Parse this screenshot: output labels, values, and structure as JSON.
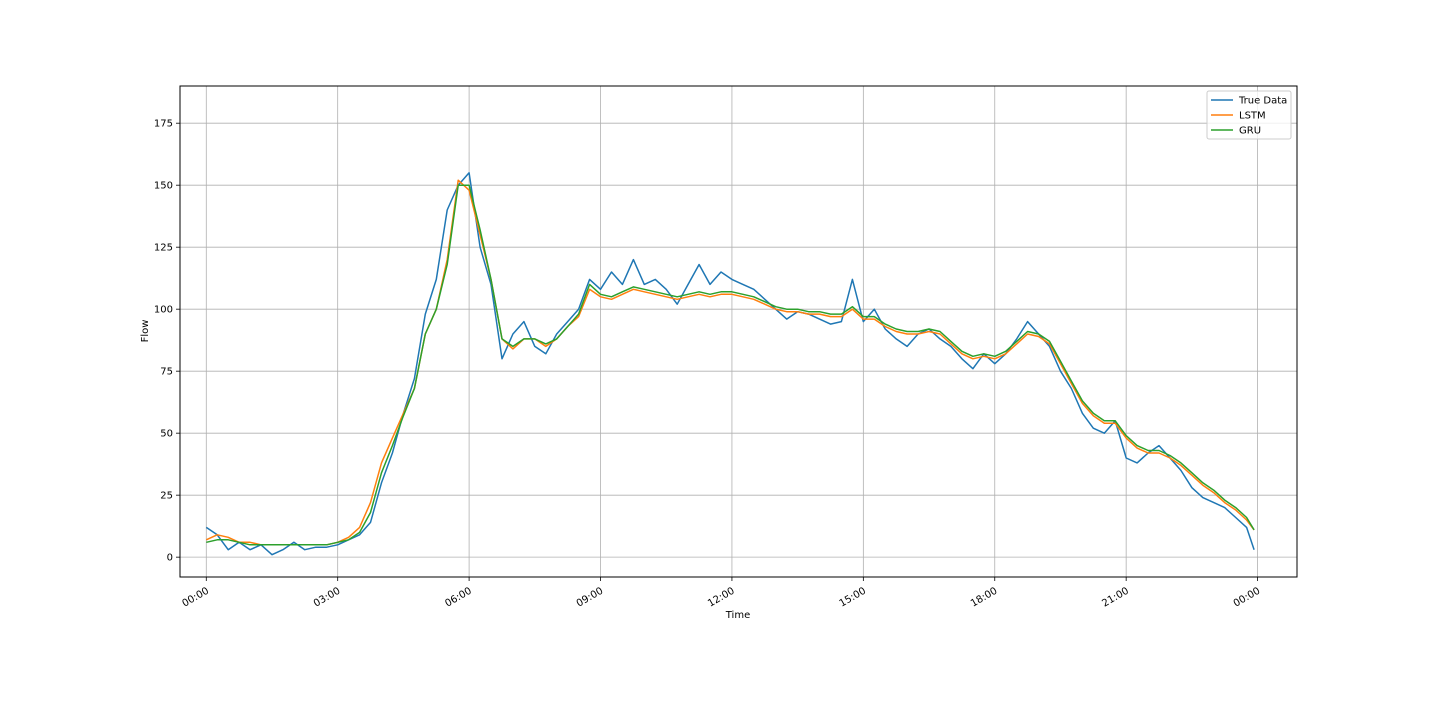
{
  "chart_data": {
    "type": "line",
    "title": "",
    "xlabel": "Time",
    "ylabel": "Flow",
    "x_unit": "hours",
    "xlim": [
      -0.6,
      24.9
    ],
    "ylim": [
      -8,
      190
    ],
    "grid": true,
    "legend_position": "top-right",
    "x_ticks": [
      0,
      3,
      6,
      9,
      12,
      15,
      18,
      21,
      24
    ],
    "x_tick_labels": [
      "00:00",
      "03:00",
      "06:00",
      "09:00",
      "12:00",
      "15:00",
      "18:00",
      "21:00",
      "00:00"
    ],
    "y_ticks": [
      0,
      25,
      50,
      75,
      100,
      125,
      150,
      175
    ],
    "y_tick_labels": [
      "0",
      "25",
      "50",
      "75",
      "100",
      "125",
      "150",
      "175"
    ],
    "x": [
      0.0,
      0.25,
      0.5,
      0.75,
      1.0,
      1.25,
      1.5,
      1.75,
      2.0,
      2.25,
      2.5,
      2.75,
      3.0,
      3.25,
      3.5,
      3.75,
      4.0,
      4.25,
      4.5,
      4.75,
      5.0,
      5.25,
      5.5,
      5.75,
      6.0,
      6.25,
      6.5,
      6.75,
      7.0,
      7.25,
      7.5,
      7.75,
      8.0,
      8.25,
      8.5,
      8.75,
      9.0,
      9.25,
      9.5,
      9.75,
      10.0,
      10.25,
      10.5,
      10.75,
      11.0,
      11.25,
      11.5,
      11.75,
      12.0,
      12.25,
      12.5,
      12.75,
      13.0,
      13.25,
      13.5,
      13.75,
      14.0,
      14.25,
      14.5,
      14.75,
      15.0,
      15.25,
      15.5,
      15.75,
      16.0,
      16.25,
      16.5,
      16.75,
      17.0,
      17.25,
      17.5,
      17.75,
      18.0,
      18.25,
      18.5,
      18.75,
      19.0,
      19.25,
      19.5,
      19.75,
      20.0,
      20.25,
      20.5,
      20.75,
      21.0,
      21.25,
      21.5,
      21.75,
      22.0,
      22.25,
      22.5,
      22.75,
      23.0,
      23.25,
      23.5,
      23.75,
      23.92
    ],
    "series": [
      {
        "name": "True Data",
        "color": "#1f77b4",
        "values": [
          12,
          9,
          3,
          6,
          3,
          5,
          1,
          3,
          6,
          3,
          4,
          4,
          5,
          7,
          9,
          14,
          30,
          42,
          58,
          72,
          98,
          112,
          140,
          150,
          155,
          125,
          110,
          80,
          90,
          95,
          85,
          82,
          90,
          95,
          100,
          112,
          108,
          115,
          110,
          120,
          110,
          112,
          108,
          102,
          110,
          118,
          110,
          115,
          112,
          110,
          108,
          104,
          100,
          96,
          99,
          98,
          96,
          94,
          95,
          112,
          95,
          100,
          92,
          88,
          85,
          90,
          92,
          88,
          85,
          80,
          76,
          82,
          78,
          82,
          88,
          95,
          90,
          85,
          75,
          68,
          58,
          52,
          50,
          55,
          40,
          38,
          42,
          45,
          40,
          35,
          28,
          24,
          22,
          20,
          16,
          12,
          3
        ]
      },
      {
        "name": "LSTM",
        "color": "#ff7f0e",
        "values": [
          7,
          9,
          8,
          6,
          6,
          5,
          5,
          5,
          5,
          5,
          5,
          5,
          6,
          8,
          12,
          22,
          38,
          48,
          58,
          68,
          90,
          100,
          120,
          152,
          148,
          130,
          112,
          88,
          84,
          88,
          88,
          85,
          88,
          93,
          97,
          108,
          105,
          104,
          106,
          108,
          107,
          106,
          105,
          104,
          105,
          106,
          105,
          106,
          106,
          105,
          104,
          102,
          100,
          99,
          99,
          98,
          98,
          97,
          97,
          100,
          96,
          96,
          93,
          91,
          90,
          90,
          91,
          90,
          86,
          82,
          80,
          81,
          80,
          82,
          86,
          90,
          89,
          86,
          78,
          70,
          62,
          57,
          54,
          54,
          48,
          44,
          42,
          42,
          40,
          37,
          33,
          29,
          26,
          22,
          19,
          15,
          11
        ]
      },
      {
        "name": "GRU",
        "color": "#2ca02c",
        "values": [
          6,
          7,
          7,
          6,
          5,
          5,
          5,
          5,
          5,
          5,
          5,
          5,
          6,
          7,
          10,
          18,
          34,
          45,
          57,
          68,
          90,
          100,
          118,
          150,
          150,
          132,
          112,
          88,
          85,
          88,
          88,
          86,
          88,
          93,
          98,
          110,
          106,
          105,
          107,
          109,
          108,
          107,
          106,
          105,
          106,
          107,
          106,
          107,
          107,
          106,
          105,
          103,
          101,
          100,
          100,
          99,
          99,
          98,
          98,
          101,
          97,
          97,
          94,
          92,
          91,
          91,
          92,
          91,
          87,
          83,
          81,
          82,
          81,
          83,
          87,
          91,
          90,
          87,
          79,
          71,
          63,
          58,
          55,
          55,
          49,
          45,
          43,
          43,
          41,
          38,
          34,
          30,
          27,
          23,
          20,
          16,
          11
        ]
      }
    ]
  }
}
